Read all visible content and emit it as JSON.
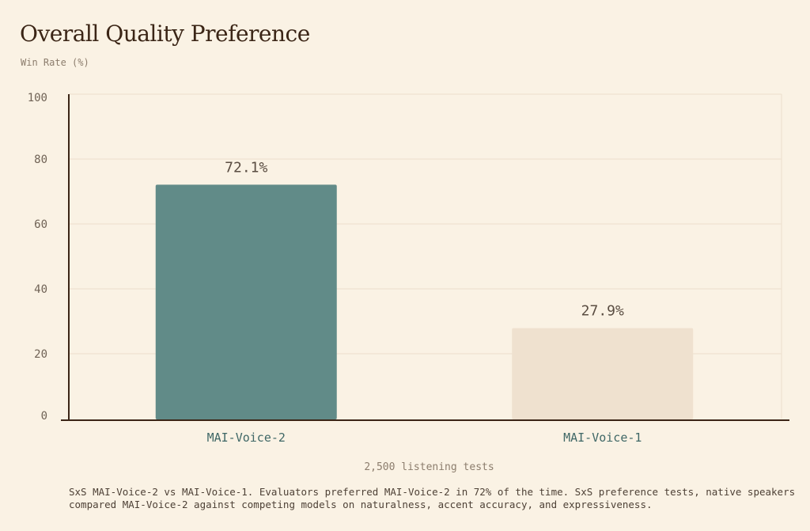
{
  "chart_data": {
    "type": "bar",
    "title": "Overall Quality Preference",
    "ylabel": "Win Rate (%)",
    "xlabel": "2,500 listening tests",
    "categories": [
      "MAI-Voice-2",
      "MAI-Voice-1"
    ],
    "values": [
      72.1,
      27.9
    ],
    "value_labels": [
      "72.1%",
      "27.9%"
    ],
    "ylim": [
      0,
      100
    ],
    "yticks": [
      0,
      20,
      40,
      60,
      80,
      100
    ],
    "bar_colors": [
      "#618b88",
      "#efe1cf"
    ],
    "grid": true
  },
  "footnote": "SxS MAI-Voice-2 vs MAI-Voice-1. Evaluators preferred MAI-Voice-2 in 72% of the time. SxS  preference tests, native speakers compared MAI-Voice-2 against competing models on naturalness, accent accuracy, and expressiveness."
}
